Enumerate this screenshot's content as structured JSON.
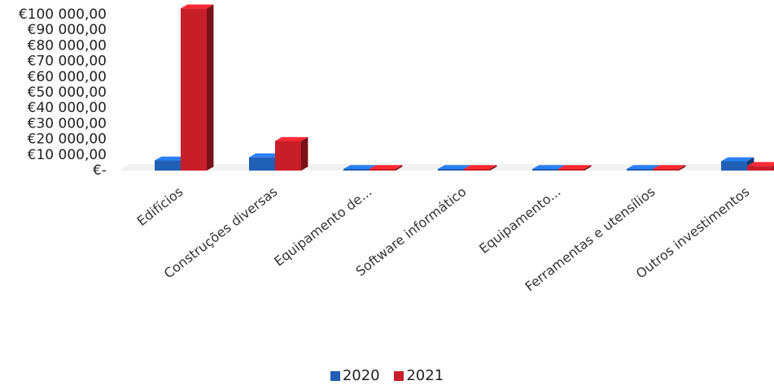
{
  "chart_data": {
    "type": "bar",
    "style": "3d-clustered-column",
    "categories": [
      "Edifícios",
      "Construções diversas",
      "Equipamento de...",
      "Software informático",
      "Equipamento...",
      "Ferramentas e utensílios",
      "Outros investimentos"
    ],
    "series": [
      {
        "name": "2020",
        "color": "#1f5fb4",
        "values": [
          6500,
          8500,
          300,
          200,
          200,
          300,
          6000
        ]
      },
      {
        "name": "2021",
        "color": "#c81e28",
        "values": [
          104000,
          19000,
          300,
          300,
          300,
          300,
          3000
        ]
      }
    ],
    "y_tick_labels": [
      "€-",
      "€10 000,00",
      "€20 000,00",
      "€30 000,00",
      "€40 000,00",
      "€50 000,00",
      "€60 000,00",
      "€70 000,00",
      "€80 000,00",
      "€90 000,00",
      "€100 000,00"
    ],
    "ylim": [
      0,
      100000
    ],
    "grid": false,
    "legend_position": "bottom"
  }
}
